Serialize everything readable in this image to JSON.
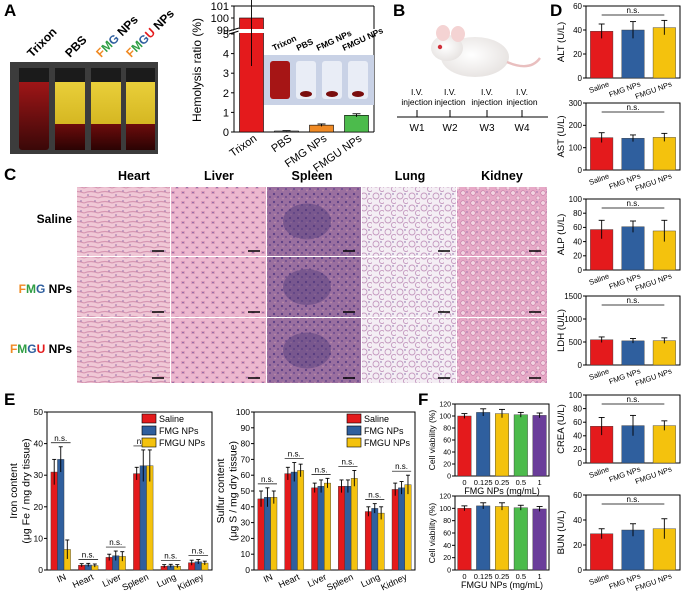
{
  "colors": {
    "red": "#e41a1c",
    "blue": "#2f5f9e",
    "yellow": "#f4c20d",
    "green": "#4cbb4c",
    "orange": "#f08a24",
    "grey": "#aaaaaa"
  },
  "panels": {
    "a": "A",
    "b": "B",
    "c": "C",
    "d": "D",
    "e": "E",
    "f": "F"
  },
  "panel_a": {
    "vial_labels": [
      "Trixon",
      "PBS"
    ],
    "fmg_letters": [
      "F",
      "M",
      "G",
      " NPs"
    ],
    "fmgu_letters": [
      "F",
      "M",
      "G",
      "U",
      " NPs"
    ],
    "inset_labels": [
      "Trixon",
      "PBS",
      "FMG NPs",
      "FMGU NPs"
    ]
  },
  "panel_b": {
    "injections": [
      "I.V.\ninjection",
      "I.V.\ninjection",
      "I.V.\ninjection",
      "I.V.\ninjection"
    ],
    "weeks": [
      "W1",
      "W2",
      "W3",
      "W4"
    ]
  },
  "panel_c": {
    "organs": [
      "Heart",
      "Liver",
      "Spleen",
      "Lung",
      "Kidney"
    ],
    "groups": [
      "Saline",
      "FMG NPs",
      "FMGU NPs"
    ]
  },
  "chart_data": [
    {
      "id": "hemolysis",
      "type": "bar",
      "categories": [
        "Trixon",
        "PBS",
        "FMG NPs",
        "FMGU NPs"
      ],
      "values": [
        100,
        0.05,
        0.35,
        0.85
      ],
      "errors": [
        4,
        0.02,
        0.06,
        0.08
      ],
      "ylabel": "Hemolysis ratio (%)",
      "ylim_lower": [
        0,
        5
      ],
      "ylim_upper": [
        99,
        101
      ],
      "yticks_lower": [
        0,
        1,
        2,
        3,
        4,
        5
      ],
      "yticks_upper": [
        99,
        100,
        101
      ]
    },
    {
      "id": "iron",
      "type": "bar",
      "categories": [
        "IN",
        "Heart",
        "Liver",
        "Spleen",
        "Lung",
        "Kidney"
      ],
      "series": [
        {
          "name": "Saline",
          "values": [
            31,
            1.5,
            4,
            30.5,
            1.2,
            2.3
          ],
          "errors": [
            4,
            0.5,
            1,
            2,
            0.5,
            0.8
          ]
        },
        {
          "name": "FMG NPs",
          "values": [
            35,
            1.6,
            4.5,
            33,
            1.3,
            2.6
          ],
          "errors": [
            4,
            0.5,
            1.5,
            5,
            0.5,
            0.7
          ]
        },
        {
          "name": "FMGU NPs",
          "values": [
            6.5,
            1.4,
            4.3,
            33,
            1.2,
            2.2
          ],
          "errors": [
            3,
            0.5,
            1.5,
            5,
            0.5,
            0.6
          ]
        }
      ],
      "ylabel": "Iron content\n(μg Fe / mg dry tissue)",
      "ylim": [
        0,
        50
      ],
      "yticks": [
        0,
        10,
        20,
        30,
        40,
        50
      ],
      "annotation": "n.s."
    },
    {
      "id": "sulfur",
      "type": "bar",
      "categories": [
        "IN",
        "Heart",
        "Liver",
        "Spleen",
        "Lung",
        "Kidney"
      ],
      "series": [
        {
          "name": "Saline",
          "values": [
            45,
            61,
            52,
            53,
            37,
            51
          ],
          "errors": [
            5,
            4,
            3,
            4,
            3,
            4
          ]
        },
        {
          "name": "FMG NPs",
          "values": [
            46,
            62,
            53,
            53,
            39,
            52
          ],
          "errors": [
            6,
            6,
            4,
            4,
            3,
            4
          ]
        },
        {
          "name": "FMGU NPs",
          "values": [
            46,
            63,
            55,
            58,
            36,
            54
          ],
          "errors": [
            4,
            4,
            3,
            5,
            4,
            6
          ]
        }
      ],
      "ylabel": "Sulfur content\n(μg S / mg dry tissue)",
      "ylim": [
        0,
        100
      ],
      "yticks": [
        0,
        10,
        20,
        30,
        40,
        50,
        60,
        70,
        80,
        90,
        100
      ],
      "annotation": "n.s."
    },
    {
      "id": "via_fmg",
      "type": "bar",
      "categories": [
        "0",
        "0.125",
        "0.25",
        "0.5",
        "1"
      ],
      "values": [
        100,
        106,
        104,
        102,
        101
      ],
      "errors": [
        4,
        6,
        7,
        4,
        4
      ],
      "ylabel": "Cell viability (%)",
      "xlabel": "FMG NPs (mg/mL)",
      "ylim": [
        0,
        120
      ],
      "yticks": [
        0,
        20,
        40,
        60,
        80,
        100,
        120
      ]
    },
    {
      "id": "via_fmgu",
      "type": "bar",
      "categories": [
        "0",
        "0.125",
        "0.25",
        "0.5",
        "1"
      ],
      "values": [
        100,
        104,
        103,
        101,
        99
      ],
      "errors": [
        4,
        5,
        6,
        4,
        4
      ],
      "ylabel": "Cell viability (%)",
      "xlabel": "FMGU NPs (mg/mL)",
      "ylim": [
        0,
        120
      ],
      "yticks": [
        0,
        20,
        40,
        60,
        80,
        100,
        120
      ]
    },
    {
      "id": "alt",
      "type": "bar",
      "categories": [
        "Saline",
        "FMG NPs",
        "FMGU NPs"
      ],
      "values": [
        39,
        40,
        42
      ],
      "errors": [
        6,
        7,
        6
      ],
      "ylabel": "ALT (U/L)",
      "ylim": [
        0,
        60
      ],
      "yticks": [
        0,
        20,
        40,
        60
      ],
      "annotation": "n.s."
    },
    {
      "id": "ast",
      "type": "bar",
      "categories": [
        "Saline",
        "FMG NPs",
        "FMGU NPs"
      ],
      "values": [
        145,
        142,
        146
      ],
      "errors": [
        22,
        15,
        18
      ],
      "ylabel": "AST (U/L)",
      "ylim": [
        0,
        300
      ],
      "yticks": [
        0,
        100,
        200,
        300
      ],
      "annotation": "n.s."
    },
    {
      "id": "alp",
      "type": "bar",
      "categories": [
        "Saline",
        "FMG NPs",
        "FMGU NPs"
      ],
      "values": [
        57,
        61,
        55
      ],
      "errors": [
        13,
        8,
        15
      ],
      "ylabel": "ALP (U/L)",
      "ylim": [
        0,
        100
      ],
      "yticks": [
        0,
        20,
        40,
        60,
        80,
        100
      ],
      "annotation": "n.s."
    },
    {
      "id": "ldh",
      "type": "bar",
      "categories": [
        "Saline",
        "FMG NPs",
        "FMGU NPs"
      ],
      "values": [
        550,
        525,
        530
      ],
      "errors": [
        60,
        50,
        60
      ],
      "ylabel": "LDH (U/L)",
      "ylim": [
        0,
        1500
      ],
      "yticks": [
        0,
        500,
        1000,
        1500
      ],
      "annotation": "n.s."
    },
    {
      "id": "crea",
      "type": "bar",
      "categories": [
        "Saline",
        "FMG NPs",
        "FMGU NPs"
      ],
      "values": [
        54,
        55,
        55
      ],
      "errors": [
        13,
        15,
        7
      ],
      "ylabel": "CREA (U/L)",
      "ylim": [
        0,
        100
      ],
      "yticks": [
        0,
        20,
        40,
        60,
        80,
        100
      ],
      "annotation": "n.s."
    },
    {
      "id": "bun",
      "type": "bar",
      "categories": [
        "Saline",
        "FMG NPs",
        "FMGU NPs"
      ],
      "values": [
        29,
        32,
        33
      ],
      "errors": [
        4,
        5,
        8
      ],
      "ylabel": "BUN (U/L)",
      "ylim": [
        0,
        60
      ],
      "yticks": [
        0,
        20,
        40,
        60
      ],
      "annotation": "n.s."
    }
  ]
}
